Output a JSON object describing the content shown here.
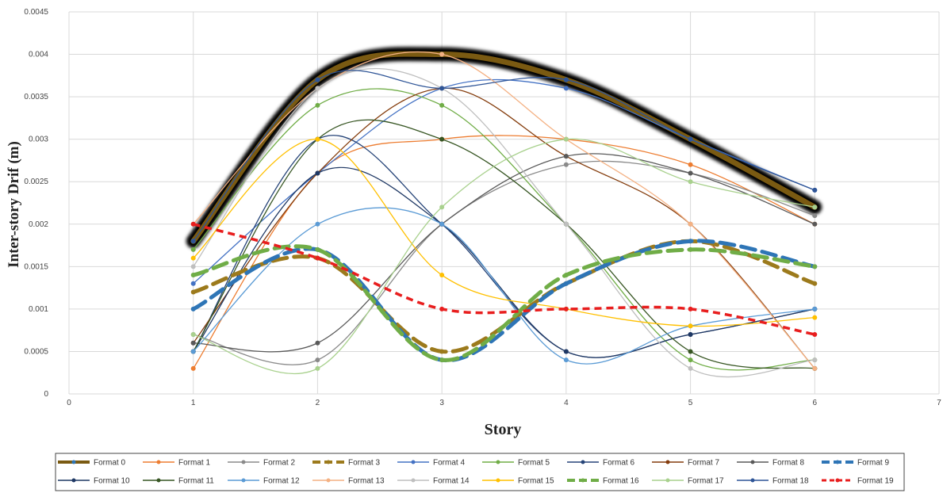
{
  "chart_data": {
    "type": "line",
    "title": "",
    "xlabel": "Story",
    "ylabel": "Inter-story Drif (m)",
    "xlim": [
      0,
      7
    ],
    "ylim": [
      0,
      0.0045
    ],
    "xticks": [
      "0",
      "1",
      "2",
      "3",
      "4",
      "5",
      "6",
      "7"
    ],
    "yticks": [
      "0",
      "0.0005",
      "0.001",
      "0.0015",
      "0.002",
      "0.0025",
      "0.003",
      "0.0035",
      "0.004",
      "0.0045"
    ],
    "grid": true,
    "legend_position": "bottom",
    "series": [
      {
        "name": "Format 0",
        "color": "#7a5a12",
        "style": "highlight",
        "x": [
          1,
          2,
          3,
          4,
          5,
          6
        ],
        "y": [
          0.0018,
          0.0037,
          0.004,
          0.0037,
          0.003,
          0.0022
        ]
      },
      {
        "name": "Format 1",
        "color": "#ed7d31",
        "style": "solid",
        "x": [
          1,
          2,
          3,
          4,
          5,
          6
        ],
        "y": [
          0.0003,
          0.0026,
          0.003,
          0.003,
          0.0027,
          0.002
        ]
      },
      {
        "name": "Format 2",
        "color": "#8a8a8a",
        "style": "solid",
        "x": [
          1,
          2,
          3,
          4,
          5,
          6
        ],
        "y": [
          0.0007,
          0.0004,
          0.002,
          0.0027,
          0.0026,
          0.0021
        ]
      },
      {
        "name": "Format 3",
        "color": "#9c7a1c",
        "style": "dashed",
        "x": [
          1,
          2,
          3,
          4,
          5,
          6
        ],
        "y": [
          0.0012,
          0.0016,
          0.0005,
          0.0013,
          0.0018,
          0.0013
        ]
      },
      {
        "name": "Format 4",
        "color": "#4472c4",
        "style": "solid",
        "x": [
          1,
          2,
          3,
          4,
          5,
          6
        ],
        "y": [
          0.0013,
          0.0026,
          0.0036,
          0.0036,
          0.003,
          0.0024
        ]
      },
      {
        "name": "Format 5",
        "color": "#70ad47",
        "style": "solid",
        "x": [
          1,
          2,
          3,
          4,
          5,
          6
        ],
        "y": [
          0.0017,
          0.0034,
          0.0034,
          0.002,
          0.0004,
          0.0004
        ]
      },
      {
        "name": "Format 6",
        "color": "#264478",
        "style": "solid",
        "x": [
          1,
          2,
          3,
          4,
          5,
          6
        ],
        "y": [
          0.0005,
          0.003,
          0.002,
          0.0005,
          0.0007,
          0.001
        ]
      },
      {
        "name": "Format 7",
        "color": "#843c0c",
        "style": "solid",
        "x": [
          1,
          2,
          3,
          4,
          5,
          6
        ],
        "y": [
          0.0006,
          0.0026,
          0.0036,
          0.0028,
          0.002,
          0.0003
        ]
      },
      {
        "name": "Format 8",
        "color": "#595959",
        "style": "solid",
        "x": [
          1,
          2,
          3,
          4,
          5,
          6
        ],
        "y": [
          0.0006,
          0.0006,
          0.002,
          0.0028,
          0.0026,
          0.002
        ]
      },
      {
        "name": "Format 9",
        "color": "#2e75b6",
        "style": "dashed",
        "x": [
          1,
          2,
          3,
          4,
          5,
          6
        ],
        "y": [
          0.001,
          0.0017,
          0.0004,
          0.0013,
          0.0018,
          0.0015
        ]
      },
      {
        "name": "Format 10",
        "color": "#1f3864",
        "style": "solid",
        "x": [
          1,
          2,
          3,
          4,
          5,
          6
        ],
        "y": [
          0.0005,
          0.0026,
          0.002,
          0.0005,
          0.0007,
          0.001
        ]
      },
      {
        "name": "Format 11",
        "color": "#375623",
        "style": "solid",
        "x": [
          1,
          2,
          3,
          4,
          5,
          6
        ],
        "y": [
          0.0005,
          0.003,
          0.003,
          0.002,
          0.0005,
          0.0003
        ]
      },
      {
        "name": "Format 12",
        "color": "#5b9bd5",
        "style": "solid",
        "x": [
          1,
          2,
          3,
          4,
          5,
          6
        ],
        "y": [
          0.0005,
          0.002,
          0.002,
          0.0004,
          0.0008,
          0.001
        ]
      },
      {
        "name": "Format 13",
        "color": "#f4b183",
        "style": "solid",
        "x": [
          1,
          2,
          3,
          4,
          5,
          6
        ],
        "y": [
          0.002,
          0.0036,
          0.004,
          0.003,
          0.002,
          0.0003
        ]
      },
      {
        "name": "Format 14",
        "color": "#bfbfbf",
        "style": "solid",
        "x": [
          1,
          2,
          3,
          4,
          5,
          6
        ],
        "y": [
          0.0015,
          0.0036,
          0.0036,
          0.002,
          0.0003,
          0.0004
        ]
      },
      {
        "name": "Format 15",
        "color": "#ffc000",
        "style": "solid",
        "x": [
          1,
          2,
          3,
          4,
          5,
          6
        ],
        "y": [
          0.0016,
          0.003,
          0.0014,
          0.001,
          0.0008,
          0.0009
        ]
      },
      {
        "name": "Format 16",
        "color": "#70ad47",
        "style": "dashed",
        "x": [
          1,
          2,
          3,
          4,
          5,
          6
        ],
        "y": [
          0.0014,
          0.0017,
          0.0004,
          0.0014,
          0.0017,
          0.0015
        ]
      },
      {
        "name": "Format  17",
        "color": "#a9d18e",
        "style": "solid",
        "x": [
          1,
          2,
          3,
          4,
          5,
          6
        ],
        "y": [
          0.0007,
          0.0003,
          0.0022,
          0.003,
          0.0025,
          0.0022
        ]
      },
      {
        "name": "Format 18",
        "color": "#2f5597",
        "style": "solid",
        "x": [
          1,
          2,
          3,
          4,
          5,
          6
        ],
        "y": [
          0.0018,
          0.0037,
          0.0036,
          0.0037,
          0.003,
          0.0024
        ]
      },
      {
        "name": "Format 19",
        "color": "#e81e1e",
        "style": "dotted",
        "x": [
          1,
          2,
          3,
          4,
          5,
          6
        ],
        "y": [
          0.002,
          0.0016,
          0.001,
          0.001,
          0.001,
          0.0007
        ]
      }
    ]
  }
}
